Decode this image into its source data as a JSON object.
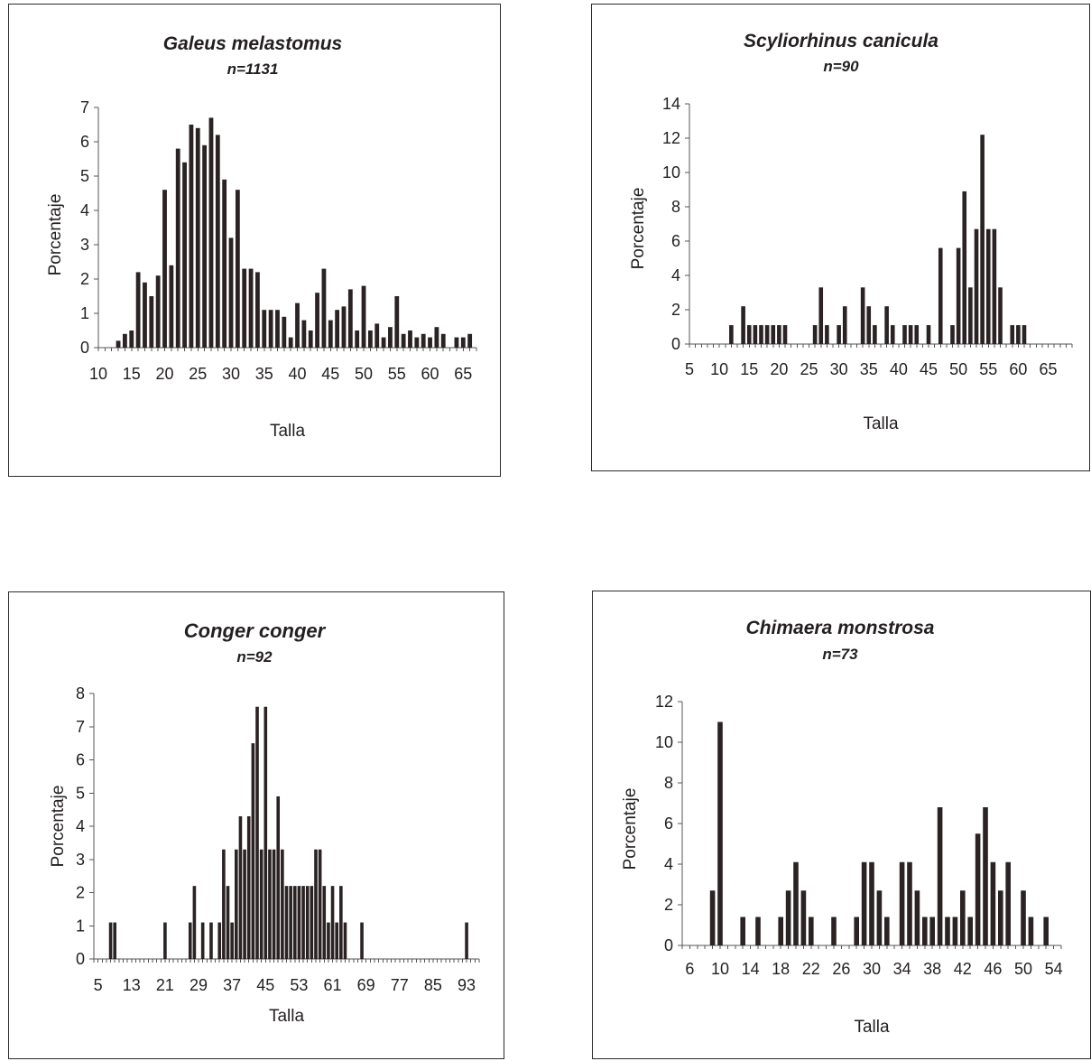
{
  "chart_data": [
    {
      "type": "bar",
      "title": "Galeus melastomus",
      "subtitle": "n=1131",
      "xlabel": "Talla",
      "ylabel": "Porcentaje",
      "ylim": [
        0,
        7
      ],
      "yticks": [
        "0",
        "1",
        "2",
        "3",
        "4",
        "5",
        "6",
        "7"
      ],
      "xticks": [
        "10",
        "15",
        "20",
        "25",
        "30",
        "35",
        "40",
        "45",
        "50",
        "55",
        "60",
        "65"
      ],
      "xlim": [
        10,
        67
      ],
      "grid": false,
      "x": [
        13,
        14,
        15,
        16,
        17,
        18,
        19,
        20,
        21,
        22,
        23,
        24,
        25,
        26,
        27,
        28,
        29,
        30,
        31,
        32,
        33,
        34,
        35,
        36,
        37,
        38,
        39,
        40,
        41,
        42,
        43,
        44,
        45,
        46,
        47,
        48,
        49,
        50,
        51,
        52,
        53,
        54,
        55,
        56,
        57,
        58,
        59,
        60,
        61,
        62,
        63,
        64,
        65,
        66
      ],
      "values": [
        0.2,
        0.4,
        0.5,
        2.2,
        1.9,
        1.5,
        2.1,
        4.6,
        2.4,
        5.8,
        5.4,
        6.5,
        6.4,
        5.9,
        6.7,
        6.2,
        4.9,
        3.2,
        4.6,
        2.3,
        2.3,
        2.2,
        1.1,
        1.1,
        1.1,
        0.9,
        0.3,
        1.3,
        0.8,
        0.5,
        1.6,
        2.3,
        0.8,
        1.1,
        1.2,
        1.7,
        0.5,
        1.8,
        0.5,
        0.7,
        0.3,
        0.6,
        1.5,
        0.4,
        0.5,
        0.3,
        0.4,
        0.3,
        0.6,
        0.4,
        0,
        0.3,
        0.3,
        0.4
      ]
    },
    {
      "type": "bar",
      "title": "Scyliorhinus canicula",
      "subtitle": "n=90",
      "xlabel": "Talla",
      "ylabel": "Porcentaje",
      "ylim": [
        0,
        14
      ],
      "yticks": [
        "0",
        "2",
        "4",
        "6",
        "8",
        "10",
        "12",
        "14"
      ],
      "xticks": [
        "5",
        "10",
        "15",
        "20",
        "25",
        "30",
        "35",
        "40",
        "45",
        "50",
        "55",
        "60",
        "65"
      ],
      "xlim": [
        5,
        69
      ],
      "grid": false,
      "x": [
        12,
        14,
        15,
        16,
        17,
        18,
        19,
        20,
        21,
        26,
        27,
        28,
        30,
        31,
        34,
        35,
        36,
        38,
        39,
        41,
        42,
        43,
        45,
        47,
        49,
        50,
        51,
        52,
        53,
        54,
        55,
        56,
        57,
        59,
        60,
        61
      ],
      "values": [
        1.1,
        2.2,
        1.1,
        1.1,
        1.1,
        1.1,
        1.1,
        1.1,
        1.1,
        1.1,
        3.3,
        1.1,
        1.1,
        2.2,
        3.3,
        2.2,
        1.1,
        2.2,
        1.1,
        1.1,
        1.1,
        1.1,
        1.1,
        5.6,
        1.1,
        5.6,
        8.9,
        3.3,
        6.7,
        12.2,
        6.7,
        6.7,
        3.3,
        1.1,
        1.1,
        1.1
      ]
    },
    {
      "type": "bar",
      "title": "Conger conger",
      "subtitle": "n=92",
      "xlabel": "Talla",
      "ylabel": "Porcentaje",
      "ylim": [
        0,
        8
      ],
      "yticks": [
        "0",
        "1",
        "2",
        "3",
        "4",
        "5",
        "6",
        "7",
        "8"
      ],
      "xticks": [
        "5",
        "13",
        "21",
        "29",
        "37",
        "45",
        "53",
        "61",
        "69",
        "77",
        "85",
        "93"
      ],
      "xlim": [
        4,
        96
      ],
      "grid": false,
      "x": [
        8,
        9,
        21,
        27,
        28,
        30,
        32,
        34,
        35,
        36,
        37,
        38,
        39,
        40,
        41,
        42,
        43,
        44,
        45,
        46,
        47,
        48,
        49,
        50,
        51,
        52,
        53,
        54,
        55,
        56,
        57,
        58,
        59,
        60,
        61,
        62,
        63,
        64,
        68,
        93
      ],
      "values": [
        1.1,
        1.1,
        1.1,
        1.1,
        2.2,
        1.1,
        1.1,
        1.1,
        3.3,
        2.2,
        1.1,
        3.3,
        4.3,
        3.3,
        4.3,
        6.5,
        7.6,
        3.3,
        7.6,
        3.3,
        3.3,
        4.9,
        3.3,
        2.2,
        2.2,
        2.2,
        2.2,
        2.2,
        2.2,
        2.2,
        3.3,
        3.3,
        2.2,
        1.1,
        2.2,
        1.1,
        2.2,
        1.1,
        1.1,
        1.1
      ]
    },
    {
      "type": "bar",
      "title": "Chimaera monstrosa",
      "subtitle": "n=73",
      "xlabel": "Talla",
      "ylabel": "Porcentaje",
      "ylim": [
        0,
        12
      ],
      "yticks": [
        "0",
        "2",
        "4",
        "6",
        "8",
        "10",
        "12"
      ],
      "xticks": [
        "6",
        "10",
        "14",
        "18",
        "22",
        "26",
        "30",
        "34",
        "38",
        "42",
        "46",
        "50",
        "54"
      ],
      "xlim": [
        5,
        55
      ],
      "grid": false,
      "x": [
        9,
        10,
        13,
        15,
        18,
        19,
        20,
        21,
        22,
        25,
        28,
        29,
        30,
        31,
        32,
        34,
        35,
        36,
        37,
        38,
        39,
        40,
        41,
        42,
        43,
        44,
        45,
        46,
        47,
        48,
        50,
        51,
        53
      ],
      "values": [
        2.7,
        11,
        1.4,
        1.4,
        1.4,
        2.7,
        4.1,
        2.7,
        1.4,
        1.4,
        1.4,
        4.1,
        4.1,
        2.7,
        1.4,
        4.1,
        4.1,
        2.7,
        1.4,
        1.4,
        6.8,
        1.4,
        1.4,
        2.7,
        1.4,
        5.5,
        6.8,
        4.1,
        2.7,
        4.1,
        2.7,
        1.4,
        1.4
      ]
    }
  ]
}
